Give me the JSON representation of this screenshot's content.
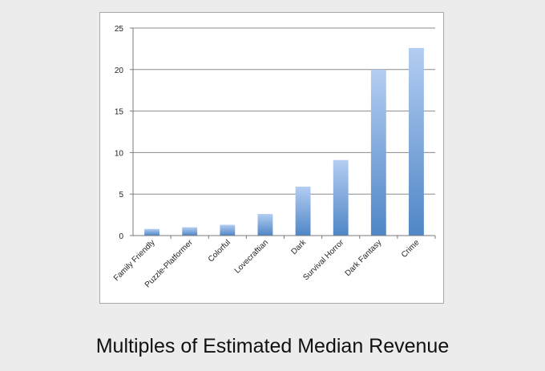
{
  "caption": "Multiples of Estimated Median Revenue",
  "chart_data": {
    "type": "bar",
    "categories": [
      "Family Friendly",
      "Puzzle-Platformer",
      "Colorful",
      "Lovecraftian",
      "Dark",
      "Survival Horror",
      "Dark Fantasy",
      "Crime"
    ],
    "values": [
      0.8,
      1.0,
      1.3,
      2.6,
      5.9,
      9.1,
      20.0,
      22.6
    ],
    "yticks": [
      0,
      5,
      10,
      15,
      20,
      25
    ],
    "ylim": [
      0,
      25
    ],
    "title": "",
    "xlabel": "",
    "ylabel": "",
    "grid": true,
    "colors": {
      "bar_top": "#b3cdf2",
      "bar_bottom": "#4f86c6",
      "grid": "#8a8a8a",
      "axis": "#7a7a7a",
      "text": "#222222"
    }
  }
}
